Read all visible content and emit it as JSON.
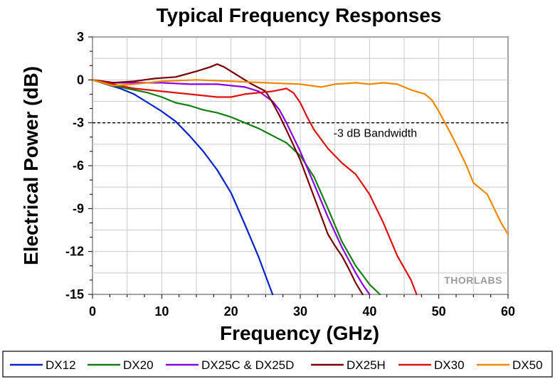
{
  "chart_data": {
    "type": "line",
    "title": "Typical Frequency Responses",
    "xlabel": "Frequency (GHz)",
    "ylabel": "Electrical Power (dB)",
    "xlim": [
      0,
      60
    ],
    "ylim": [
      -15,
      3
    ],
    "xticks": [
      0,
      10,
      20,
      30,
      40,
      50,
      60
    ],
    "yticks": [
      3,
      0,
      -3,
      -6,
      -9,
      -12,
      -15
    ],
    "xtick_labels": [
      "0",
      "10",
      "20",
      "30",
      "40",
      "50",
      "60"
    ],
    "ytick_labels": [
      "3",
      "0",
      "-3",
      "-6",
      "-9",
      "-12",
      "-15"
    ],
    "grid": true,
    "legend_position": "bottom",
    "watermark": "THORLABS",
    "reference_line": {
      "y": -3,
      "label": "-3 dB Bandwidth",
      "style": "dashed"
    },
    "series": [
      {
        "name": "DX12",
        "color": "#0022cc",
        "x": [
          0,
          2,
          4,
          6,
          8,
          10,
          12,
          14,
          16,
          18,
          20,
          22,
          24,
          25,
          26
        ],
        "y": [
          0,
          -0.3,
          -0.6,
          -1.0,
          -1.6,
          -2.2,
          -2.9,
          -3.9,
          -5.0,
          -6.3,
          -7.9,
          -10.1,
          -12.4,
          -13.7,
          -15
        ]
      },
      {
        "name": "DX20",
        "color": "#108010",
        "x": [
          0,
          2,
          4,
          6,
          8,
          10,
          12,
          14,
          16,
          18,
          20,
          22,
          24,
          26,
          28,
          30,
          32,
          34,
          36,
          38,
          40,
          41.5
        ],
        "y": [
          0,
          -0.3,
          -0.5,
          -0.7,
          -0.9,
          -1.2,
          -1.6,
          -1.8,
          -2.1,
          -2.3,
          -2.6,
          -3.0,
          -3.4,
          -3.9,
          -4.4,
          -5.3,
          -6.8,
          -9.0,
          -11.3,
          -13.0,
          -14.3,
          -15
        ]
      },
      {
        "name": "DX25C & DX25D",
        "color": "#8a00e0",
        "x": [
          0,
          3,
          6,
          10,
          14,
          18,
          20,
          22,
          24,
          26,
          27,
          28,
          30,
          32,
          34,
          36,
          38,
          39,
          40
        ],
        "y": [
          0,
          -0.2,
          -0.2,
          -0.2,
          -0.3,
          -0.3,
          -0.4,
          -0.5,
          -0.8,
          -1.5,
          -2.1,
          -3.0,
          -5.0,
          -7.3,
          -9.6,
          -11.7,
          -13.5,
          -14.3,
          -15
        ]
      },
      {
        "name": "DX25H",
        "color": "#7a0000",
        "x": [
          0,
          3,
          6,
          9,
          12,
          15,
          17,
          18,
          19,
          20,
          21,
          23,
          25,
          26,
          27,
          28,
          30,
          32,
          34,
          35,
          36,
          37,
          38,
          39
        ],
        "y": [
          0,
          -0.2,
          -0.1,
          0.1,
          0.2,
          0.6,
          0.9,
          1.1,
          0.9,
          0.6,
          0.3,
          -0.3,
          -0.8,
          -1.6,
          -2.5,
          -3.5,
          -5.6,
          -8.2,
          -10.8,
          -11.6,
          -12.3,
          -13.2,
          -14.2,
          -15
        ]
      },
      {
        "name": "DX30",
        "color": "#e01010",
        "x": [
          0,
          3,
          6,
          10,
          14,
          18,
          20,
          22,
          24,
          26,
          28,
          29,
          30,
          31,
          32,
          34,
          36,
          38,
          40,
          42,
          44,
          46,
          46.8
        ],
        "y": [
          0,
          -0.3,
          -0.6,
          -0.8,
          -1.0,
          -1.2,
          -1.2,
          -1.0,
          -0.9,
          -0.8,
          -0.6,
          -0.9,
          -1.6,
          -2.6,
          -3.5,
          -4.8,
          -5.8,
          -6.6,
          -8.0,
          -10.0,
          -12.3,
          -14.0,
          -15
        ]
      },
      {
        "name": "DX50",
        "color": "#f08800",
        "x": [
          0,
          3,
          6,
          10,
          15,
          20,
          25,
          30,
          33,
          35,
          38,
          40,
          42,
          44,
          46,
          48,
          49,
          50,
          51,
          52,
          53,
          54,
          55,
          56,
          57,
          58,
          59,
          60
        ],
        "y": [
          0,
          -0.4,
          -0.3,
          -0.1,
          0,
          -0.1,
          -0.2,
          -0.3,
          -0.5,
          -0.3,
          -0.2,
          -0.3,
          -0.2,
          -0.3,
          -0.7,
          -1.0,
          -1.4,
          -2.2,
          -3.1,
          -4.0,
          -5.0,
          -6.0,
          -7.2,
          -7.6,
          -8.0,
          -9.0,
          -10.0,
          -10.8
        ]
      }
    ]
  }
}
